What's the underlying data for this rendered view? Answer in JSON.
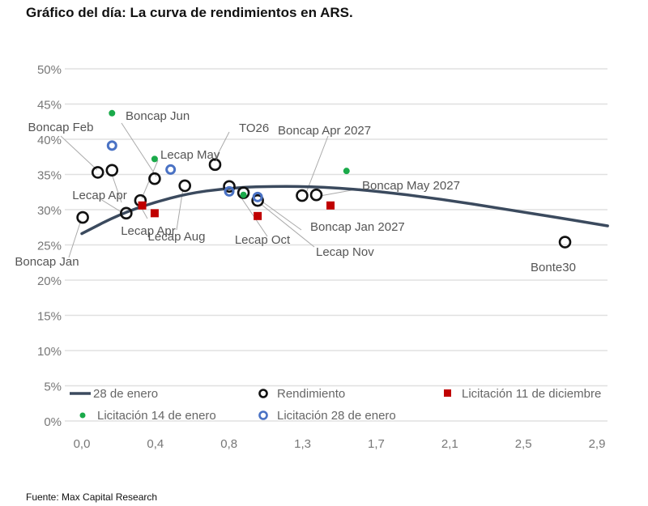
{
  "chart_data": {
    "type": "scatter",
    "title": "Gráfico del día: La curva de rendimientos en ARS.",
    "source": "Fuente: Max Capital Research",
    "xlabel": "",
    "ylabel": "",
    "xlim": [
      0,
      2.9
    ],
    "ylim": [
      0,
      50
    ],
    "grid": "horizontal",
    "legend_position": "bottom",
    "x_tick_labels": [
      "0,0",
      "0,4",
      "0,8",
      "1,3",
      "1,7",
      "2,1",
      "2,5",
      "2,9"
    ],
    "y_ticks": [
      0,
      5,
      10,
      15,
      20,
      25,
      30,
      35,
      40,
      45,
      50
    ],
    "y_tick_labels": [
      "0%",
      "5%",
      "10%",
      "15%",
      "20%",
      "25%",
      "30%",
      "35%",
      "40%",
      "45%",
      "50%"
    ],
    "series": [
      {
        "name": "28 de enero",
        "kind": "line",
        "color": "#3b4a5e",
        "x": [
          0,
          0.2,
          0.4,
          0.6,
          0.8,
          1.0,
          1.3,
          1.6,
          2.0,
          2.4,
          2.7,
          2.96
        ],
        "y": [
          26.6,
          29.2,
          31.0,
          32.3,
          33.0,
          33.3,
          33.3,
          32.8,
          31.6,
          30.0,
          28.8,
          27.7
        ]
      },
      {
        "name": "Rendimiento",
        "kind": "ring",
        "color": "#111111",
        "x": [
          0.005,
          0.09,
          0.17,
          0.25,
          0.33,
          0.41,
          0.58,
          0.75,
          0.83,
          0.91,
          0.99,
          1.24,
          1.32,
          2.72
        ],
        "y": [
          28.9,
          35.3,
          35.6,
          29.5,
          31.3,
          34.4,
          33.4,
          36.4,
          33.3,
          32.4,
          31.3,
          32.0,
          32.1,
          25.4
        ]
      },
      {
        "name": "Licitación 11 de diciembre",
        "kind": "square",
        "color": "#c00000",
        "x": [
          0.34,
          0.41,
          0.99,
          1.4
        ],
        "y": [
          30.6,
          29.5,
          29.1,
          30.6
        ]
      },
      {
        "name": "Licitación 14 de enero",
        "kind": "dot",
        "color": "#1aaa4a",
        "x": [
          0.17,
          0.41,
          0.91,
          1.49
        ],
        "y": [
          43.7,
          37.2,
          32.1,
          35.5
        ]
      },
      {
        "name": "Licitación 28 de enero",
        "kind": "ring",
        "color": "#4a72c4",
        "x": [
          0.17,
          0.5,
          0.83,
          0.99
        ],
        "y": [
          39.1,
          35.7,
          32.6,
          31.8
        ]
      }
    ],
    "annotations": [
      "Boncap Jan",
      "Boncap Feb",
      "Boncap Jun",
      "Lecap May",
      "TO26",
      "Boncap Apr 2027",
      "Boncap May 2027",
      "Lecap Apr",
      "Lecap Apr",
      "Lecap Aug",
      "Lecap Oct",
      "Boncap Jan 2027",
      "Lecap Nov",
      "Bonte30"
    ]
  }
}
